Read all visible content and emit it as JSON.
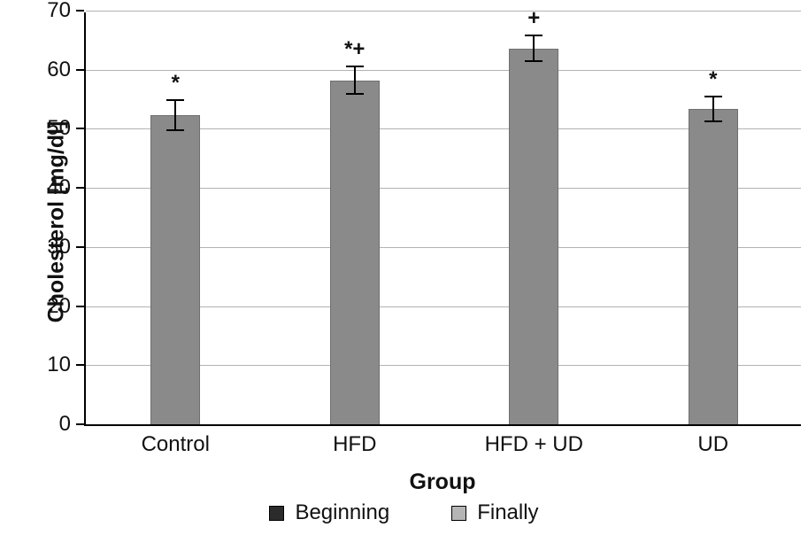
{
  "chart_data": {
    "type": "bar",
    "title": "",
    "xlabel": "Group",
    "ylabel": "Cholesterol [mg/dl]",
    "ylim": [
      0,
      70
    ],
    "yticks": [
      0,
      10,
      20,
      30,
      40,
      50,
      60,
      70
    ],
    "categories": [
      "Control",
      "HFD",
      "HFD + UD",
      "UD"
    ],
    "values": [
      52.3,
      58.2,
      63.6,
      53.4
    ],
    "errors": [
      2.6,
      2.3,
      2.2,
      2.1
    ],
    "annotations": [
      "*",
      "*+",
      "+",
      "*"
    ],
    "grid": true,
    "legend_position": "bottom",
    "bar_color": "#8a8a8a",
    "legend": [
      {
        "label": "Beginning",
        "color": "#2b2b2b"
      },
      {
        "label": "Finally",
        "color": "#b5b5b5"
      }
    ]
  }
}
